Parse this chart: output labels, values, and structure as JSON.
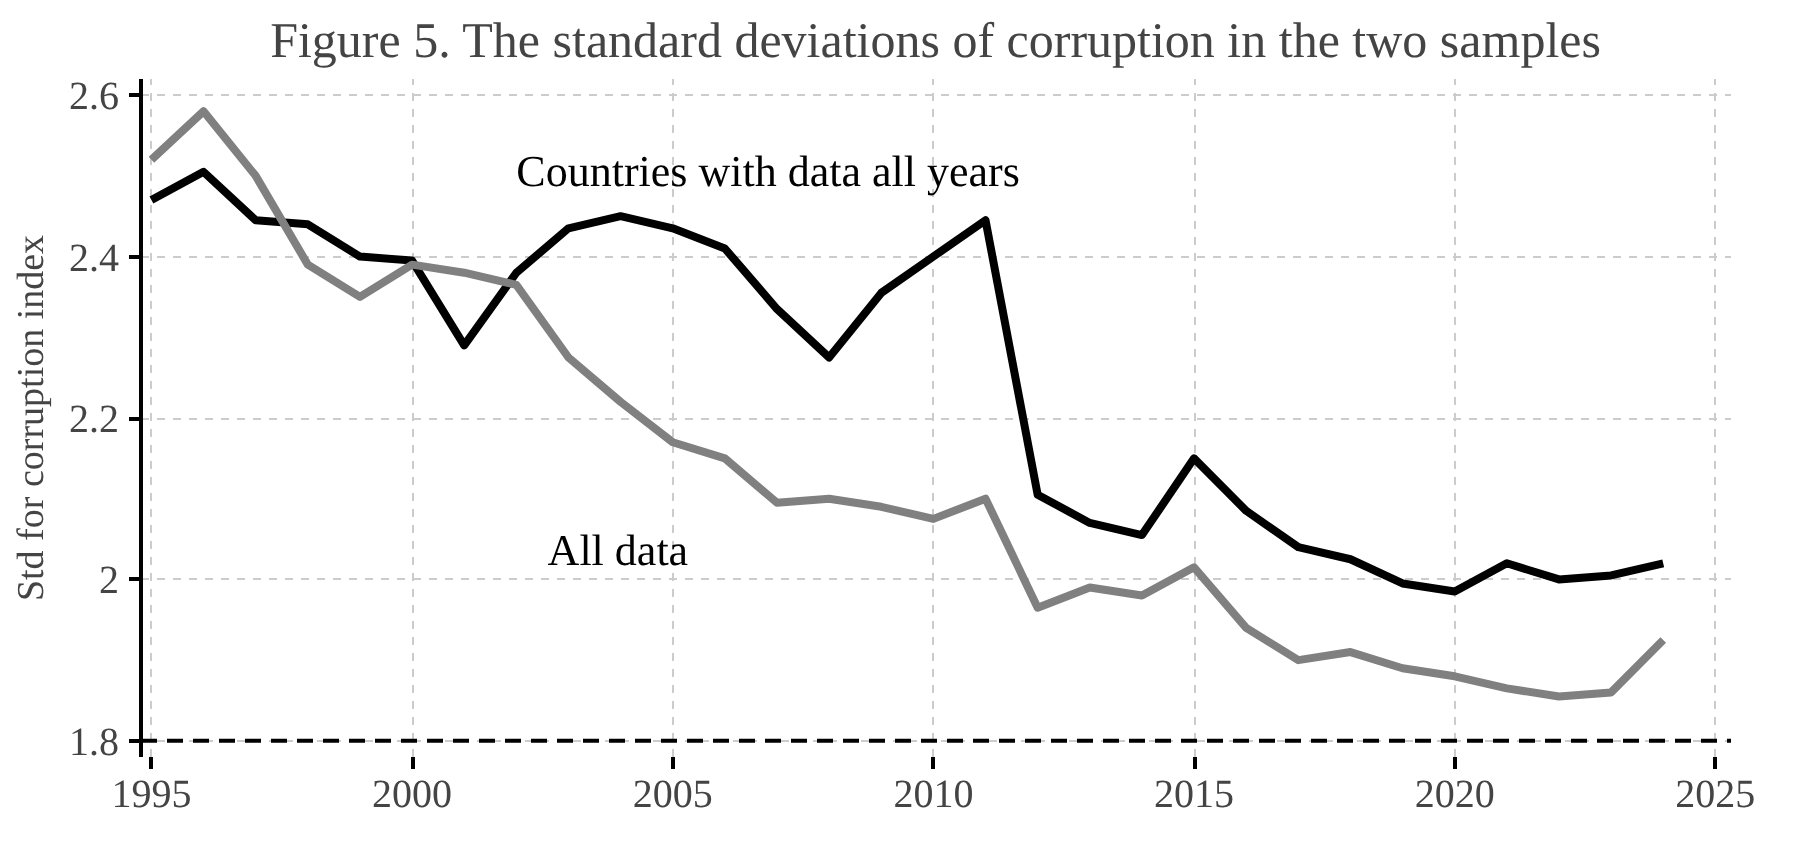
{
  "chart_data": {
    "type": "line",
    "title": "Figure 5. The standard deviations of corruption in the two samples",
    "ylabel": "Std for corruption index",
    "x": [
      1995,
      1996,
      1997,
      1998,
      1999,
      2000,
      2001,
      2002,
      2003,
      2004,
      2005,
      2006,
      2007,
      2008,
      2009,
      2010,
      2011,
      2012,
      2013,
      2014,
      2015,
      2016,
      2017,
      2018,
      2019,
      2020,
      2021,
      2022,
      2023,
      2024
    ],
    "series": [
      {
        "name": "Countries with data all years",
        "color": "#000000",
        "values": [
          2.47,
          2.505,
          2.445,
          2.44,
          2.4,
          2.395,
          2.29,
          2.38,
          2.435,
          2.45,
          2.435,
          2.41,
          2.335,
          2.275,
          2.355,
          2.4,
          2.445,
          2.105,
          2.07,
          2.055,
          2.15,
          2.085,
          2.04,
          2.025,
          1.995,
          1.985,
          2.02,
          2.0,
          2.005,
          2.02
        ]
      },
      {
        "name": "All data",
        "color": "#808080",
        "values": [
          2.52,
          2.58,
          2.5,
          2.39,
          2.35,
          2.39,
          2.38,
          2.365,
          2.275,
          2.22,
          2.17,
          2.15,
          2.095,
          2.1,
          2.09,
          2.075,
          2.1,
          1.965,
          1.99,
          1.98,
          2.015,
          1.94,
          1.9,
          1.91,
          1.89,
          1.88,
          1.865,
          1.855,
          1.86,
          1.925
        ]
      }
    ],
    "xlim": [
      1994.8,
      2025.3
    ],
    "ylim": [
      1.78,
      2.62
    ],
    "xticks": [
      1995,
      2000,
      2005,
      2010,
      2015,
      2020,
      2025
    ],
    "yticks": [
      {
        "value": 1.8,
        "label": "1.8"
      },
      {
        "value": 2.0,
        "label": "2"
      },
      {
        "value": 2.2,
        "label": "2.2"
      },
      {
        "value": 2.4,
        "label": "2.4"
      },
      {
        "value": 2.6,
        "label": "2.6"
      }
    ],
    "ref_lines": [
      {
        "axis": "y",
        "value": 1.8,
        "label": null,
        "color": "#000000",
        "line_style": "dashed"
      }
    ],
    "grid": true,
    "legend": false,
    "marker": "none",
    "line_style": "solid"
  }
}
